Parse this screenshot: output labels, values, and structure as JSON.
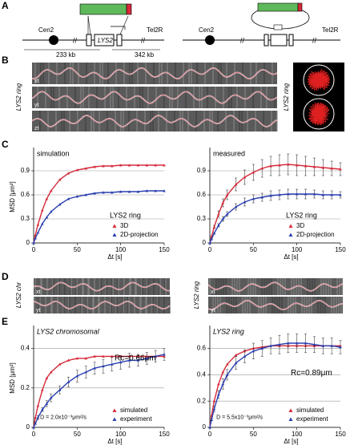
{
  "panels": [
    "A",
    "B",
    "C",
    "D",
    "E"
  ],
  "diagram": {
    "cen_left": "Cen2",
    "tel_left": "Tel2R",
    "gene": "LYS2",
    "dist_left": "233 kb",
    "dist_right": "342 kb",
    "cen_right": "Cen2",
    "tel_right": "Tel2R"
  },
  "kymographs": {
    "b_label": "LYS2 ring",
    "b_right_label": "LYS2 ring",
    "b_rows": [
      "xt",
      "yt",
      "zt"
    ],
    "d_left_label": "LYS2 chr",
    "d_right_label": "LYS2 ring",
    "d_left_rows": [
      "xt",
      "yt"
    ],
    "d_right_rows": [
      "xt",
      "yt"
    ]
  },
  "chart_data": [
    {
      "type": "line",
      "title": "simulation",
      "ylabel": "MSD [μm²]",
      "xlabel": "Δt [s]",
      "xlim": [
        0,
        150
      ],
      "xticks": [
        0,
        50,
        100,
        150
      ],
      "ylim": [
        0,
        1.15
      ],
      "yticks": [
        0,
        0.3,
        0.6,
        0.9
      ],
      "grid": true,
      "legend": "lower right",
      "legend_title": "LYS2 ring",
      "x": [
        0,
        2,
        5,
        10,
        15,
        20,
        30,
        40,
        50,
        60,
        70,
        80,
        90,
        100,
        110,
        120,
        130,
        140,
        150
      ],
      "series": [
        {
          "name": "3D",
          "color": "#d62a3a",
          "values": [
            0,
            0.1,
            0.23,
            0.41,
            0.55,
            0.65,
            0.79,
            0.87,
            0.91,
            0.93,
            0.95,
            0.96,
            0.96,
            0.97,
            0.97,
            0.97,
            0.97,
            0.97,
            0.97
          ]
        },
        {
          "name": "2D-projection",
          "color": "#2a3fb0",
          "values": [
            0,
            0.06,
            0.13,
            0.24,
            0.32,
            0.39,
            0.48,
            0.55,
            0.58,
            0.6,
            0.62,
            0.63,
            0.63,
            0.64,
            0.64,
            0.64,
            0.65,
            0.65,
            0.65
          ]
        }
      ]
    },
    {
      "type": "line",
      "title": "measured",
      "xlabel": "Δt [s]",
      "xlim": [
        0,
        150
      ],
      "xticks": [
        0,
        50,
        100,
        150
      ],
      "ylim": [
        0,
        1.15
      ],
      "yticks": [
        0,
        0.3,
        0.6,
        0.9
      ],
      "grid": true,
      "legend": "lower right",
      "legend_title": "LYS2 ring",
      "x": [
        0,
        2,
        5,
        10,
        15,
        20,
        30,
        40,
        50,
        60,
        70,
        80,
        90,
        100,
        110,
        120,
        130,
        140,
        150
      ],
      "series": [
        {
          "name": "3D",
          "color": "#d62a3a",
          "values": [
            0,
            0.08,
            0.2,
            0.36,
            0.5,
            0.6,
            0.73,
            0.82,
            0.88,
            0.93,
            0.96,
            0.97,
            0.98,
            0.97,
            0.96,
            0.95,
            0.94,
            0.93,
            0.92
          ],
          "errors": [
            0,
            0.01,
            0.02,
            0.04,
            0.05,
            0.06,
            0.08,
            0.09,
            0.1,
            0.11,
            0.12,
            0.13,
            0.13,
            0.13,
            0.12,
            0.11,
            0.1,
            0.09,
            0.08
          ]
        },
        {
          "name": "2D-projection",
          "color": "#2a3fb0",
          "values": [
            0,
            0.05,
            0.12,
            0.22,
            0.3,
            0.36,
            0.45,
            0.51,
            0.55,
            0.57,
            0.59,
            0.6,
            0.61,
            0.61,
            0.61,
            0.61,
            0.6,
            0.6,
            0.6
          ],
          "errors": [
            0,
            0.01,
            0.01,
            0.02,
            0.03,
            0.03,
            0.04,
            0.05,
            0.05,
            0.05,
            0.06,
            0.06,
            0.06,
            0.06,
            0.06,
            0.05,
            0.05,
            0.05,
            0.04
          ]
        }
      ]
    },
    {
      "type": "line",
      "title": "LYS2 chromosomal",
      "ylabel": "MSD [μm²]",
      "xlabel": "Δt [s]",
      "xlim": [
        0,
        150
      ],
      "xticks": [
        0,
        50,
        100,
        150
      ],
      "ylim": [
        0,
        0.5
      ],
      "yticks": [
        0,
        0.2,
        0.4
      ],
      "grid": true,
      "legend": "lower right",
      "annotations": [
        "Rc=0.66μm",
        "D = 2.0x10⁻³μm²/s"
      ],
      "x": [
        0,
        2,
        5,
        10,
        15,
        20,
        30,
        40,
        50,
        60,
        70,
        80,
        90,
        100,
        110,
        120,
        130,
        140,
        150
      ],
      "series": [
        {
          "name": "simulated",
          "color": "#d62a3a",
          "values": [
            0,
            0.05,
            0.11,
            0.19,
            0.25,
            0.28,
            0.32,
            0.34,
            0.35,
            0.35,
            0.36,
            0.36,
            0.36,
            0.36,
            0.36,
            0.36,
            0.36,
            0.36,
            0.36
          ]
        },
        {
          "name": "experiment",
          "color": "#2a3fb0",
          "values": [
            0,
            0.02,
            0.05,
            0.09,
            0.12,
            0.15,
            0.19,
            0.23,
            0.26,
            0.28,
            0.3,
            0.31,
            0.32,
            0.33,
            0.34,
            0.34,
            0.35,
            0.36,
            0.37
          ],
          "errors": [
            0,
            0.005,
            0.01,
            0.01,
            0.015,
            0.02,
            0.02,
            0.025,
            0.03,
            0.03,
            0.03,
            0.035,
            0.035,
            0.035,
            0.035,
            0.03,
            0.03,
            0.03,
            0.03
          ]
        }
      ]
    },
    {
      "type": "line",
      "title": "LYS2 ring",
      "xlabel": "Δt [s]",
      "xlim": [
        0,
        150
      ],
      "xticks": [
        0,
        50,
        100,
        150
      ],
      "ylim": [
        0,
        0.75
      ],
      "yticks": [
        0,
        0.2,
        0.4,
        0.6
      ],
      "grid": true,
      "legend": "lower right",
      "annotations": [
        "Rc=0.89μm",
        "D = 5.5x10⁻³μm²/s"
      ],
      "x": [
        0,
        2,
        5,
        10,
        15,
        20,
        30,
        40,
        50,
        60,
        70,
        80,
        90,
        100,
        110,
        120,
        130,
        140,
        150
      ],
      "series": [
        {
          "name": "simulated",
          "color": "#d62a3a",
          "values": [
            0,
            0.09,
            0.2,
            0.33,
            0.42,
            0.48,
            0.55,
            0.58,
            0.6,
            0.61,
            0.62,
            0.62,
            0.62,
            0.62,
            0.62,
            0.62,
            0.62,
            0.62,
            0.62
          ]
        },
        {
          "name": "experiment",
          "color": "#2a3fb0",
          "values": [
            0,
            0.06,
            0.14,
            0.25,
            0.33,
            0.4,
            0.49,
            0.54,
            0.58,
            0.6,
            0.62,
            0.63,
            0.64,
            0.64,
            0.64,
            0.63,
            0.62,
            0.62,
            0.61
          ],
          "errors": [
            0,
            0.01,
            0.02,
            0.03,
            0.04,
            0.04,
            0.05,
            0.05,
            0.06,
            0.06,
            0.06,
            0.07,
            0.07,
            0.07,
            0.07,
            0.06,
            0.06,
            0.06,
            0.05
          ]
        }
      ]
    }
  ]
}
